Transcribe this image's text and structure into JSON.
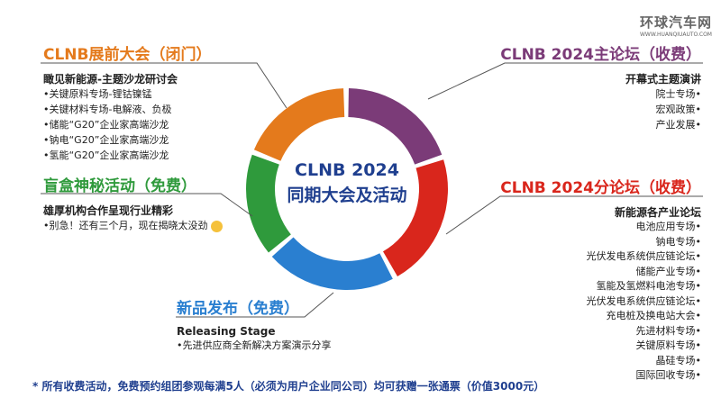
{
  "logo": {
    "text": "环球汽车网",
    "url": "WWW.HUANQIUAUTO.COM"
  },
  "center": {
    "line1": "CLNB 2024",
    "line2": "同期大会及活动"
  },
  "colors": {
    "orange": "#e47a1c",
    "purple": "#7b3b78",
    "red": "#d9261c",
    "blue": "#2a7fd0",
    "green": "#2f9a3c",
    "navy": "#1f3f8f"
  },
  "pre": {
    "title": "CLNB展前大会（闭门）",
    "subtitle": "瞰见新能源-主题沙龙研讨会",
    "items": [
      "•关键原料专场-锂钴镍锰",
      "•关键材料专场-电解液、负极",
      "•储能“G20”企业家高端沙龙",
      "•钠电“G20”企业家高端沙龙",
      "•氢能“G20”企业家高端沙龙"
    ]
  },
  "blind": {
    "title": "盲盒神秘活动（免费）",
    "subtitle": "雄厚机构合作呈现行业精彩",
    "items": [
      "•别急！还有三个月，现在揭晓太没劲"
    ]
  },
  "launch": {
    "title": "新品发布（免费）",
    "subtitle": "Releasing Stage",
    "items": [
      "•先进供应商全新解决方案演示分享"
    ]
  },
  "main": {
    "title": "CLNB 2024主论坛（收费）",
    "subtitle": "开幕式主题演讲",
    "items": [
      "院士专场•",
      "宏观政策•",
      "产业发展•"
    ]
  },
  "sub": {
    "title": "CLNB 2024分论坛（收费）",
    "subtitle": "新能源各产业论坛",
    "items": [
      "电池应用专场•",
      "钠电专场•",
      "光伏发电系统供应链论坛•",
      "储能产业专场•",
      "氢能及氢燃料电池专场•",
      "光伏发电系统供应链论坛•",
      "充电桩及换电站大会•",
      "先进材料专场•",
      "关键原料专场•",
      "晶硅专场•",
      "国际回收专场•"
    ]
  },
  "footnote": "* 所有收费活动，免费预约组团参观每满5人（必须为用户企业同公司）均可获赠一张通票（价值3000元）"
}
